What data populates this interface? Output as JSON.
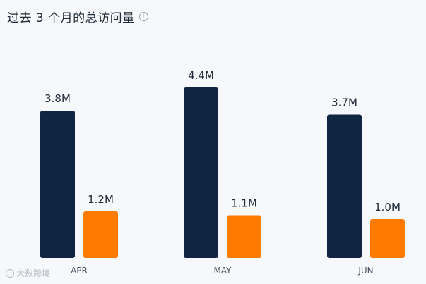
{
  "title": "过去 3 个月的总访问量",
  "watermark": "大数跨境",
  "colors": {
    "series_a": "#0f2542",
    "series_b": "#ff7a00",
    "label": "#1f2937",
    "axis_label": "#4b5563"
  },
  "chart_data": {
    "type": "bar",
    "title": "过去 3 个月的总访问量",
    "categories": [
      "APR",
      "MAY",
      "JUN"
    ],
    "series": [
      {
        "values": [
          3.8,
          4.4,
          3.7
        ],
        "labels": [
          "3.8M",
          "4.4M",
          "3.7M"
        ]
      },
      {
        "values": [
          1.2,
          1.1,
          1.0
        ],
        "labels": [
          "1.2M",
          "1.1M",
          "1.0M"
        ]
      }
    ],
    "unit": "M",
    "ylim": [
      0,
      4.4
    ],
    "grid": false,
    "legend": "none"
  }
}
